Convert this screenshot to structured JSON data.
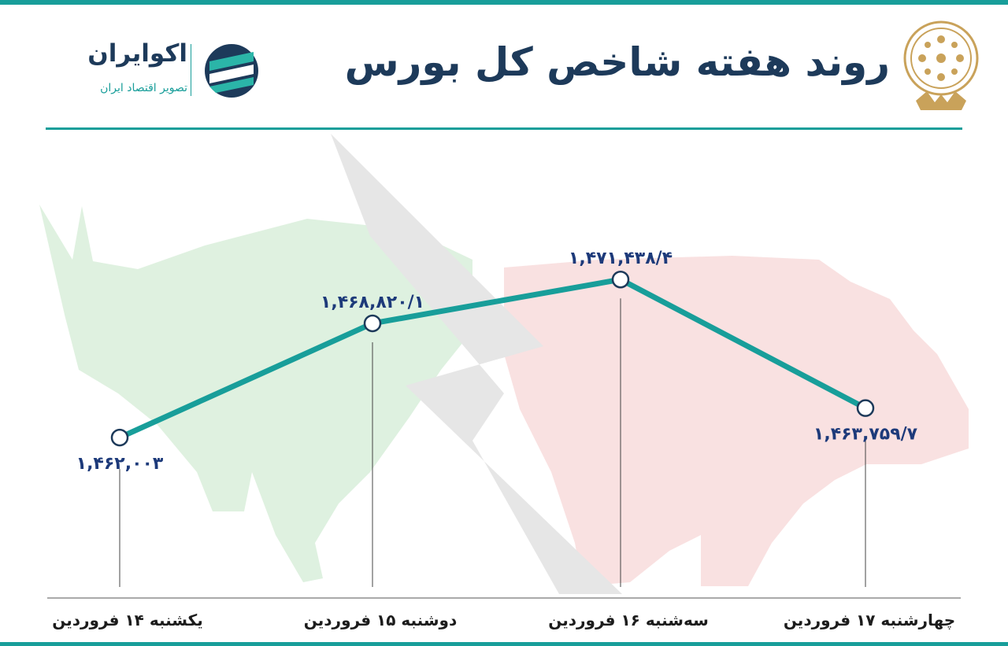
{
  "header": {
    "title": "روند هفته شاخص کل بورس",
    "brand_name": "اکوایران",
    "brand_subtitle": "تصویر اقتصاد ایران"
  },
  "colors": {
    "accent": "#189e9a",
    "title": "#1d3a5a",
    "value_text": "#1d3a7a",
    "bull": "#cfe9d3",
    "bear": "#f5d2d3"
  },
  "icons": [
    "brand-logo-icon",
    "stock-exchange-emblem-icon",
    "bull-silhouette-icon",
    "bear-silhouette-icon"
  ],
  "chart_data": {
    "type": "line",
    "title": "روند هفته شاخص کل بورس",
    "categories": [
      "یکشنبه ۱۴ فروردین",
      "دوشنبه ۱۵ فروردین",
      "سه‌شنبه ۱۶ فروردین",
      "چهارشنبه ۱۷ فروردین"
    ],
    "series": [
      {
        "values": [
          1462003,
          1468820.1,
          1471438.4,
          1463759.7
        ]
      }
    ],
    "value_labels": [
      "۱,۴۶۲,۰۰۳",
      "۱,۴۶۸,۸۲۰/۱",
      "۱,۴۷۱,۴۳۸/۴",
      "۱,۴۶۳,۷۵۹/۷"
    ],
    "ylim": [
      1459000,
      1473000
    ],
    "grid": false,
    "legend": "none"
  }
}
